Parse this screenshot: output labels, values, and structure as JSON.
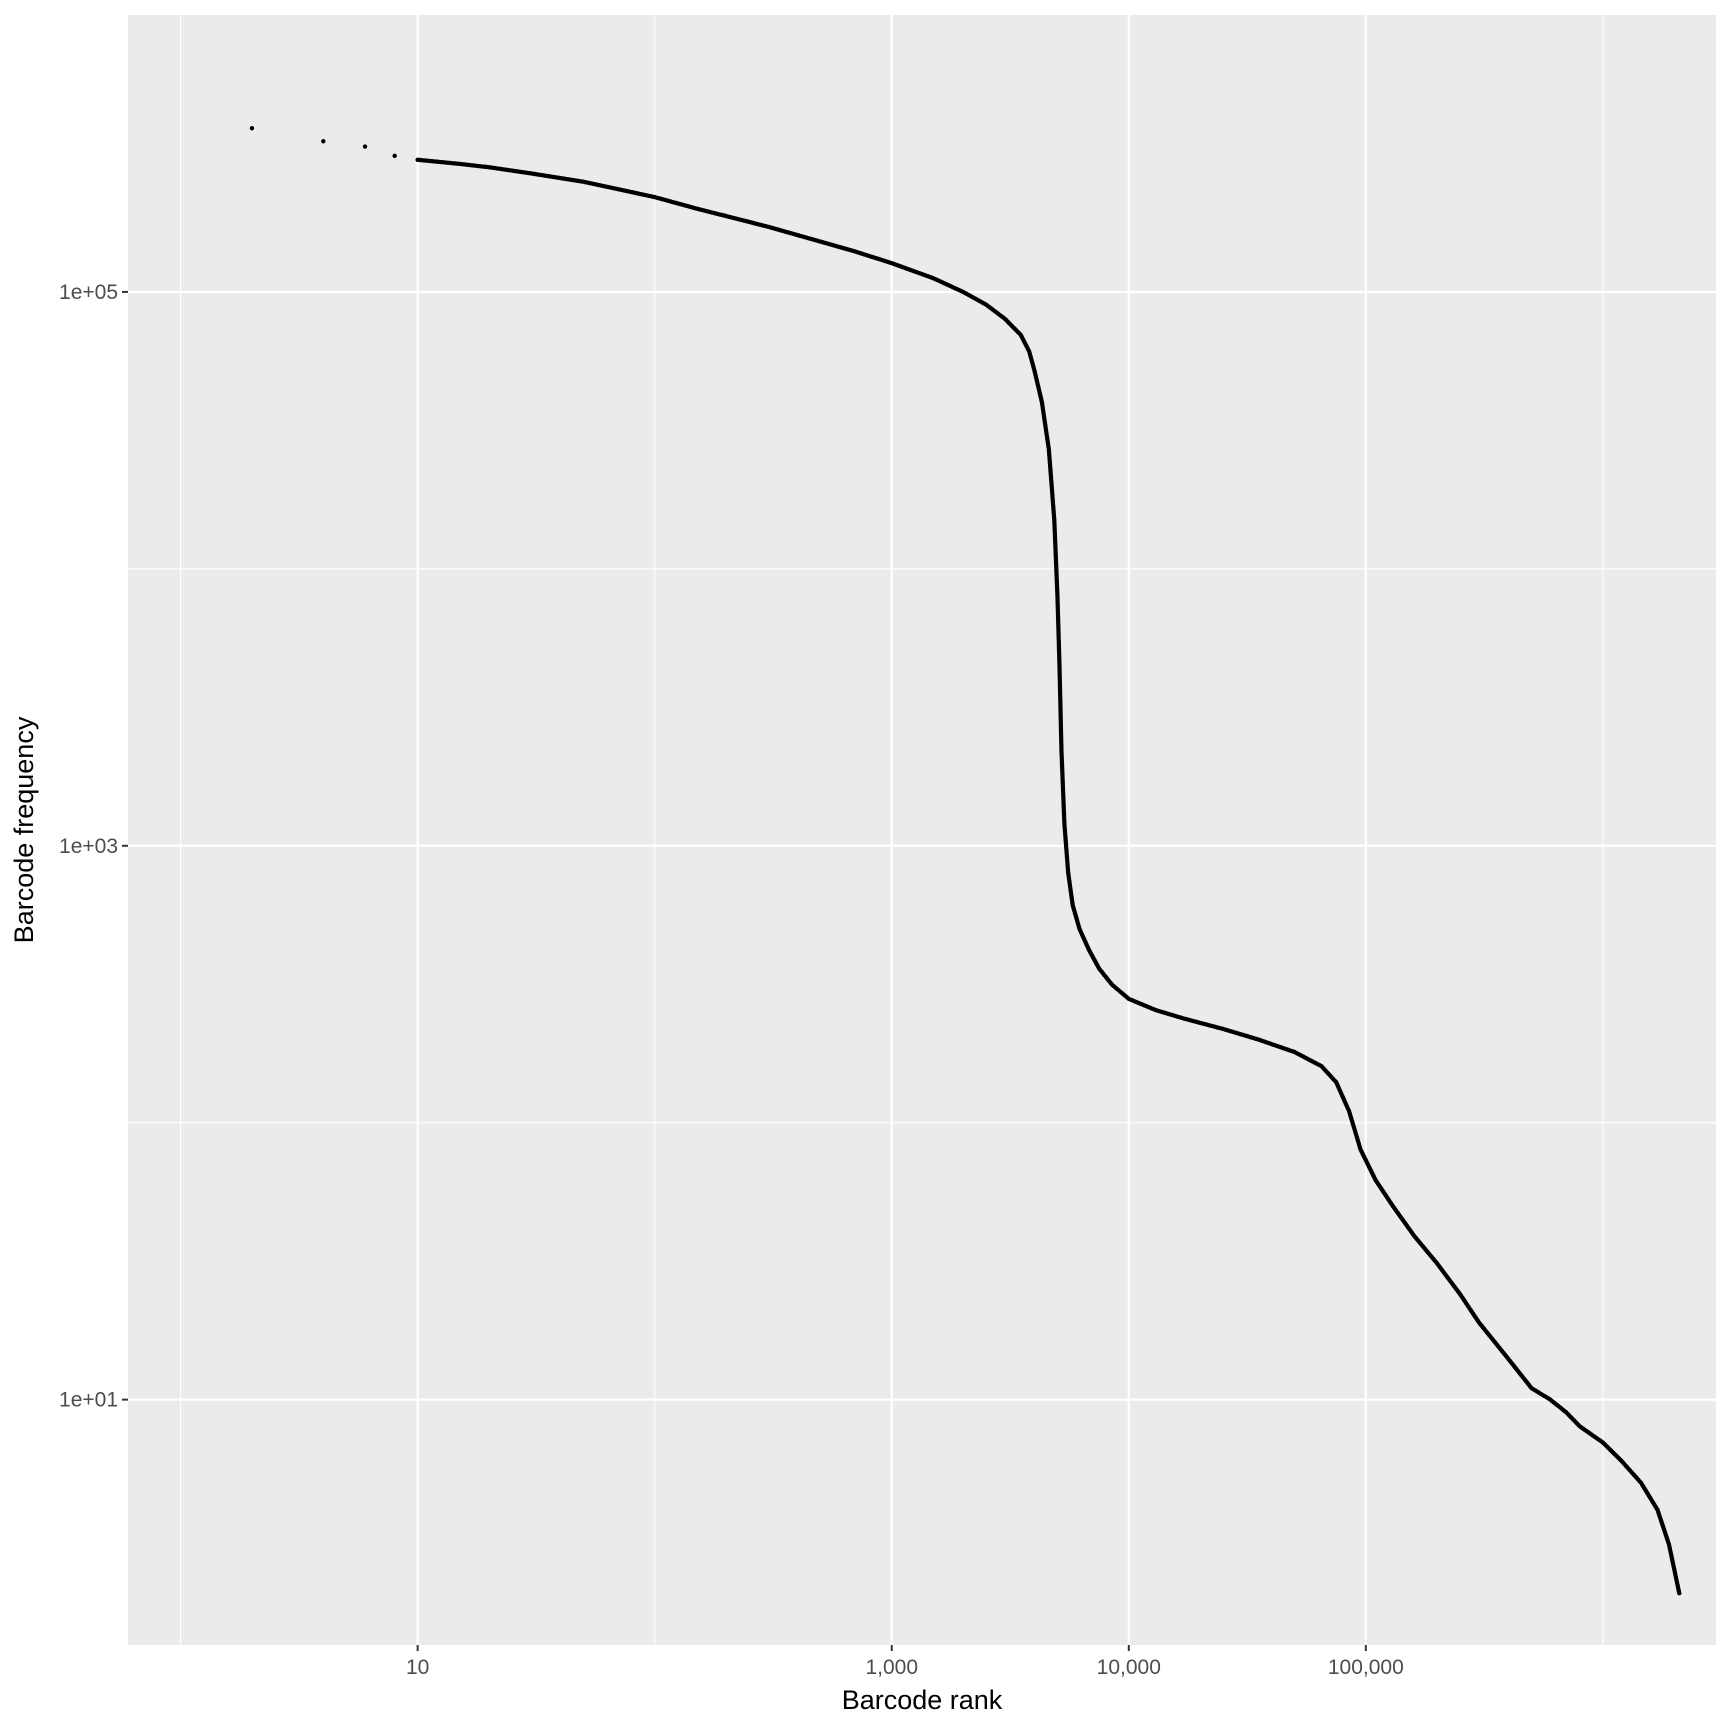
{
  "chart_data": {
    "type": "scatter",
    "title": "",
    "xlabel": "Barcode rank",
    "ylabel": "Barcode frequency",
    "x_scale": "log10",
    "y_scale": "log10",
    "xlim": [
      0.6,
      3000000
    ],
    "ylim": [
      1.3,
      1000000
    ],
    "x_ticks": [
      {
        "value": 10,
        "label": "10"
      },
      {
        "value": 1000,
        "label": "1,000"
      },
      {
        "value": 10000,
        "label": "10,000"
      },
      {
        "value": 100000,
        "label": "100,000"
      }
    ],
    "x_minor_ticks": [
      1,
      100,
      1000000
    ],
    "y_ticks": [
      {
        "value": 100000,
        "label": "1e+05"
      },
      {
        "value": 1000,
        "label": "1e+03"
      },
      {
        "value": 10,
        "label": "1e+01"
      }
    ],
    "y_minor_ticks": [
      10000,
      100,
      1
    ],
    "grid": true,
    "legend": "none",
    "background_color": "#ebebeb",
    "grid_color": "#ffffff",
    "point_color": "#000000",
    "series": [
      {
        "values": [
          [
            2,
            390000
          ],
          [
            4,
            350000
          ],
          [
            6,
            335000
          ],
          [
            8,
            310000
          ],
          [
            10,
            300000
          ],
          [
            15,
            290000
          ],
          [
            20,
            282000
          ],
          [
            30,
            268000
          ],
          [
            50,
            250000
          ],
          [
            70,
            235000
          ],
          [
            100,
            220000
          ],
          [
            150,
            200000
          ],
          [
            200,
            188000
          ],
          [
            300,
            172000
          ],
          [
            500,
            152000
          ],
          [
            700,
            140000
          ],
          [
            1000,
            127000
          ],
          [
            1500,
            112000
          ],
          [
            2000,
            100000
          ],
          [
            2500,
            90000
          ],
          [
            3000,
            80000
          ],
          [
            3500,
            70000
          ],
          [
            3800,
            61000
          ],
          [
            4000,
            52000
          ],
          [
            4300,
            40000
          ],
          [
            4600,
            27000
          ],
          [
            4850,
            15000
          ],
          [
            5000,
            8000
          ],
          [
            5100,
            4500
          ],
          [
            5200,
            2200
          ],
          [
            5350,
            1200
          ],
          [
            5550,
            800
          ],
          [
            5800,
            610
          ],
          [
            6200,
            500
          ],
          [
            6800,
            420
          ],
          [
            7500,
            360
          ],
          [
            8500,
            315
          ],
          [
            10000,
            280
          ],
          [
            13000,
            255
          ],
          [
            17000,
            238
          ],
          [
            25000,
            218
          ],
          [
            35000,
            200
          ],
          [
            50000,
            180
          ],
          [
            65000,
            160
          ],
          [
            75000,
            140
          ],
          [
            85000,
            110
          ],
          [
            95000,
            80
          ],
          [
            110000,
            62
          ],
          [
            130000,
            50
          ],
          [
            160000,
            39
          ],
          [
            200000,
            31
          ],
          [
            250000,
            24
          ],
          [
            300000,
            19
          ],
          [
            400000,
            14
          ],
          [
            500000,
            11
          ],
          [
            600000,
            10
          ],
          [
            700000,
            9
          ],
          [
            800000,
            8
          ],
          [
            1000000,
            7
          ],
          [
            1200000,
            6
          ],
          [
            1450000,
            5
          ],
          [
            1700000,
            4
          ],
          [
            1900000,
            3
          ],
          [
            2100000,
            2
          ]
        ]
      }
    ]
  }
}
